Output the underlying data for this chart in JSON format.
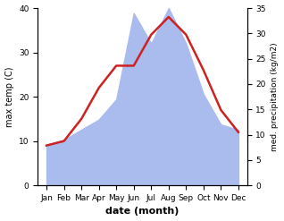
{
  "months": [
    "Jan",
    "Feb",
    "Mar",
    "Apr",
    "May",
    "Jun",
    "Jul",
    "Aug",
    "Sep",
    "Oct",
    "Nov",
    "Dec"
  ],
  "temperature": [
    9,
    10,
    15,
    22,
    27,
    27,
    34,
    38,
    34,
    26,
    17,
    12
  ],
  "precipitation": [
    8,
    9,
    11,
    13,
    17,
    34,
    28,
    35,
    28,
    18,
    12,
    11
  ],
  "temp_color": "#cc2222",
  "precip_color": "#aabbee",
  "temp_ylim": [
    0,
    40
  ],
  "precip_ylim": [
    0,
    35
  ],
  "temp_yticks": [
    0,
    10,
    20,
    30,
    40
  ],
  "precip_yticks": [
    0,
    5,
    10,
    15,
    20,
    25,
    30,
    35
  ],
  "ylabel_left": "max temp (C)",
  "ylabel_right": "med. precipitation (kg/m2)",
  "xlabel": "date (month)",
  "background_color": "#ffffff"
}
